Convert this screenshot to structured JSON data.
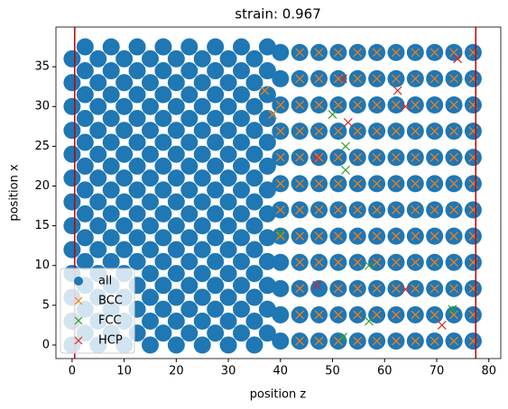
{
  "chart_data": {
    "type": "scatter",
    "title": "strain: 0.967",
    "x_label": "position z",
    "y_label": "position x",
    "xlim": [
      -3.1,
      82.3
    ],
    "ylim": [
      -1.7,
      40.0
    ],
    "xticks": [
      0,
      10,
      20,
      30,
      40,
      50,
      60,
      70,
      80
    ],
    "yticks": [
      0,
      5,
      10,
      15,
      20,
      25,
      30,
      35
    ],
    "vlines": [
      0.5,
      77.5
    ],
    "vline_color": "#c00000",
    "legend": "lower left",
    "series": [
      {
        "name": "all",
        "color": "#1f77b4",
        "marker": "o",
        "x": [
          0,
          0,
          0,
          0,
          0,
          0,
          0,
          0,
          0,
          0,
          0,
          0,
          0,
          2.5,
          2.5,
          2.5,
          2.5,
          2.5,
          2.5,
          2.5,
          2.5,
          2.5,
          2.5,
          2.5,
          2.5,
          2.5,
          5,
          5,
          5,
          5,
          5,
          5,
          5,
          5,
          5,
          5,
          5,
          5,
          5,
          7.5,
          7.5,
          7.5,
          7.5,
          7.5,
          7.5,
          7.5,
          7.5,
          7.5,
          7.5,
          7.5,
          7.5,
          7.5,
          10,
          10,
          10,
          10,
          10,
          10,
          10,
          10,
          10,
          10,
          10,
          10,
          10,
          12.5,
          12.5,
          12.5,
          12.5,
          12.5,
          12.5,
          12.5,
          12.5,
          12.5,
          12.5,
          12.5,
          12.5,
          12.5,
          15,
          15,
          15,
          15,
          15,
          15,
          15,
          15,
          15,
          15,
          15,
          15,
          15,
          17.5,
          17.5,
          17.5,
          17.5,
          17.5,
          17.5,
          17.5,
          17.5,
          17.5,
          17.5,
          17.5,
          17.5,
          17.5,
          20,
          20,
          20,
          20,
          20,
          20,
          20,
          20,
          20,
          20,
          20,
          20,
          20,
          22.5,
          22.5,
          22.5,
          22.5,
          22.5,
          22.5,
          22.5,
          22.5,
          22.5,
          22.5,
          22.5,
          22.5,
          22.5,
          25,
          25,
          25,
          25,
          25,
          25,
          25,
          25,
          25,
          25,
          25,
          25,
          25,
          27.5,
          27.5,
          27.5,
          27.5,
          27.5,
          27.5,
          27.5,
          27.5,
          27.5,
          27.5,
          27.5,
          27.5,
          27.5,
          30,
          30,
          30,
          30,
          30,
          30,
          30,
          30,
          30,
          30,
          30,
          30,
          30,
          32.5,
          32.5,
          32.5,
          32.5,
          32.5,
          32.5,
          32.5,
          32.5,
          32.5,
          32.5,
          32.5,
          32.5,
          32.5,
          35,
          35,
          35,
          35,
          35,
          35,
          35,
          35,
          35,
          35,
          35,
          35,
          35,
          37.5,
          37.5,
          37.5,
          37.5,
          37.5,
          37.5,
          37.5,
          37.5,
          37.5,
          37.5,
          37.5,
          37.5,
          37.5,
          40,
          40,
          40,
          40,
          40,
          40,
          40,
          40,
          40,
          40,
          40,
          40,
          43.7,
          43.7,
          43.7,
          43.7,
          43.7,
          43.7,
          43.7,
          43.7,
          43.7,
          43.7,
          43.7,
          43.7,
          47.4,
          47.4,
          47.4,
          47.4,
          47.4,
          47.4,
          47.4,
          47.4,
          47.4,
          47.4,
          47.4,
          47.4,
          51.1,
          51.1,
          51.1,
          51.1,
          51.1,
          51.1,
          51.1,
          51.1,
          51.1,
          51.1,
          51.1,
          51.1,
          54.8,
          54.8,
          54.8,
          54.8,
          54.8,
          54.8,
          54.8,
          54.8,
          54.8,
          54.8,
          54.8,
          54.8,
          58.5,
          58.5,
          58.5,
          58.5,
          58.5,
          58.5,
          58.5,
          58.5,
          58.5,
          58.5,
          58.5,
          58.5,
          62.2,
          62.2,
          62.2,
          62.2,
          62.2,
          62.2,
          62.2,
          62.2,
          62.2,
          62.2,
          62.2,
          62.2,
          65.9,
          65.9,
          65.9,
          65.9,
          65.9,
          65.9,
          65.9,
          65.9,
          65.9,
          65.9,
          65.9,
          65.9,
          69.6,
          69.6,
          69.6,
          69.6,
          69.6,
          69.6,
          69.6,
          69.6,
          69.6,
          69.6,
          69.6,
          69.6,
          73.3,
          73.3,
          73.3,
          73.3,
          73.3,
          73.3,
          73.3,
          73.3,
          73.3,
          73.3,
          73.3,
          73.3,
          77,
          77,
          77,
          77,
          77,
          77,
          77,
          77,
          77,
          77,
          77,
          77
        ],
        "values": [
          0,
          3,
          6,
          9,
          12,
          15,
          18,
          21,
          24,
          27,
          30,
          33,
          36,
          1.5,
          4.5,
          7.5,
          10.5,
          13.5,
          16.5,
          19.5,
          22.5,
          25.5,
          28.5,
          31.5,
          34.5,
          37.5,
          0,
          3,
          6,
          9,
          12,
          15,
          18,
          21,
          24,
          27,
          30,
          33,
          36,
          1.5,
          4.5,
          7.5,
          10.5,
          13.5,
          16.5,
          19.5,
          22.5,
          25.5,
          28.5,
          31.5,
          34.5,
          37.5,
          0,
          3,
          6,
          9,
          12,
          15,
          18,
          21,
          24,
          27,
          30,
          33,
          36,
          1.5,
          4.5,
          7.5,
          10.5,
          13.5,
          16.5,
          19.5,
          22.5,
          25.5,
          28.5,
          31.5,
          34.5,
          37.5,
          0,
          3,
          6,
          9,
          12,
          15,
          18,
          21,
          24,
          27,
          30,
          33,
          36,
          1.5,
          4.5,
          7.5,
          10.5,
          13.5,
          16.5,
          19.5,
          22.5,
          25.5,
          28.5,
          31.5,
          34.5,
          37.5,
          0,
          3,
          6,
          9,
          12,
          15,
          18,
          21,
          24,
          27,
          30,
          33,
          36,
          1.5,
          4.5,
          7.5,
          10.5,
          13.5,
          16.5,
          19.5,
          22.5,
          25.5,
          28.5,
          31.5,
          34.5,
          37.5,
          0,
          3,
          6,
          9,
          12,
          15,
          18,
          21,
          24,
          27,
          30,
          33,
          36,
          1.5,
          4.5,
          7.5,
          10.5,
          13.5,
          16.5,
          19.5,
          22.5,
          25.5,
          28.5,
          31.5,
          34.5,
          37.5,
          0,
          3,
          6,
          9,
          12,
          15,
          18,
          21,
          24,
          27,
          30,
          33,
          36,
          1.5,
          4.5,
          7.5,
          10.5,
          13.5,
          16.5,
          19.5,
          22.5,
          25.5,
          28.5,
          31.5,
          34.5,
          37.5,
          0,
          3,
          6,
          9,
          12,
          15,
          18,
          21,
          24,
          27,
          30,
          33,
          36,
          1.5,
          4.5,
          7.5,
          10.5,
          13.5,
          16.5,
          19.5,
          22.5,
          25.5,
          28.5,
          31.5,
          34.5,
          37.5,
          0.5,
          3.8,
          7.1,
          10.4,
          13.7,
          17,
          20.3,
          23.6,
          26.9,
          30.2,
          33.5,
          36.8,
          0.5,
          3.8,
          7.1,
          10.4,
          13.7,
          17,
          20.3,
          23.6,
          26.9,
          30.2,
          33.5,
          36.8,
          0.5,
          3.8,
          7.1,
          10.4,
          13.7,
          17,
          20.3,
          23.6,
          26.9,
          30.2,
          33.5,
          36.8,
          0.5,
          3.8,
          7.1,
          10.4,
          13.7,
          17,
          20.3,
          23.6,
          26.9,
          30.2,
          33.5,
          36.8,
          0.5,
          3.8,
          7.1,
          10.4,
          13.7,
          17,
          20.3,
          23.6,
          26.9,
          30.2,
          33.5,
          36.8,
          0.5,
          3.8,
          7.1,
          10.4,
          13.7,
          17,
          20.3,
          23.6,
          26.9,
          30.2,
          33.5,
          36.8,
          0.5,
          3.8,
          7.1,
          10.4,
          13.7,
          17,
          20.3,
          23.6,
          26.9,
          30.2,
          33.5,
          36.8,
          0.5,
          3.8,
          7.1,
          10.4,
          13.7,
          17,
          20.3,
          23.6,
          26.9,
          30.2,
          33.5,
          36.8,
          0.5,
          3.8,
          7.1,
          10.4,
          13.7,
          17,
          20.3,
          23.6,
          26.9,
          30.2,
          33.5,
          36.8,
          0.5,
          3.8,
          7.1,
          10.4,
          13.7,
          17,
          20.3,
          23.6,
          26.9,
          30.2,
          33.5,
          36.8,
          0.5,
          3.8,
          7.1,
          10.4,
          13.7,
          17,
          20.3,
          23.6,
          26.9,
          30.2,
          33.5,
          36.8
        ]
      },
      {
        "name": "BCC",
        "color": "#ff7f0e",
        "marker": "x",
        "x": [
          37,
          38.5,
          40,
          40,
          40,
          40,
          40,
          40,
          43.7,
          43.7,
          43.7,
          43.7,
          43.7,
          43.7,
          43.7,
          43.7,
          43.7,
          43.7,
          43.7,
          43.7,
          47.4,
          47.4,
          47.4,
          47.4,
          47.4,
          47.4,
          47.4,
          47.4,
          47.4,
          47.4,
          47.4,
          51.1,
          51.1,
          51.1,
          51.1,
          51.1,
          51.1,
          51.1,
          51.1,
          51.1,
          51.1,
          51.1,
          51.1,
          54.8,
          54.8,
          54.8,
          54.8,
          54.8,
          54.8,
          54.8,
          54.8,
          54.8,
          54.8,
          54.8,
          54.8,
          58.5,
          58.5,
          58.5,
          58.5,
          58.5,
          58.5,
          58.5,
          58.5,
          58.5,
          58.5,
          58.5,
          58.5,
          62.2,
          62.2,
          62.2,
          62.2,
          62.2,
          62.2,
          62.2,
          62.2,
          62.2,
          62.2,
          62.2,
          62.2,
          65.9,
          65.9,
          65.9,
          65.9,
          65.9,
          65.9,
          65.9,
          65.9,
          65.9,
          65.9,
          65.9,
          65.9,
          69.6,
          69.6,
          69.6,
          69.6,
          69.6,
          69.6,
          69.6,
          69.6,
          69.6,
          69.6,
          69.6,
          69.6,
          73.3,
          73.3,
          73.3,
          73.3,
          73.3,
          73.3,
          73.3,
          73.3,
          73.3,
          73.3,
          73.3,
          73.3,
          77,
          77,
          77,
          77,
          77,
          77,
          77,
          77,
          77,
          77,
          77,
          77
        ],
        "values": [
          32,
          29,
          13.7,
          17,
          20.3,
          23.6,
          26.9,
          30.2,
          0.5,
          3.8,
          7.1,
          10.4,
          13.7,
          17,
          20.3,
          23.6,
          26.9,
          30.2,
          33.5,
          36.8,
          0.5,
          3.8,
          10.4,
          13.7,
          17,
          20.3,
          23.6,
          26.9,
          30.2,
          33.5,
          36.8,
          0.5,
          3.8,
          7.1,
          10.4,
          13.7,
          17,
          20.3,
          23.6,
          26.9,
          30.2,
          33.5,
          36.8,
          0.5,
          3.8,
          7.1,
          10.4,
          13.7,
          17,
          20.3,
          23.6,
          26.9,
          30.2,
          33.5,
          36.8,
          0.5,
          3.8,
          7.1,
          10.4,
          13.7,
          17,
          20.3,
          23.6,
          26.9,
          30.2,
          33.5,
          36.8,
          0.5,
          3.8,
          7.1,
          10.4,
          13.7,
          17,
          20.3,
          23.6,
          26.9,
          30.2,
          33.5,
          36.8,
          0.5,
          3.8,
          7.1,
          10.4,
          13.7,
          17,
          20.3,
          23.6,
          26.9,
          30.2,
          33.5,
          36.8,
          0.5,
          3.8,
          7.1,
          10.4,
          13.7,
          17,
          20.3,
          23.6,
          26.9,
          30.2,
          33.5,
          36.8,
          0.5,
          3.8,
          7.1,
          10.4,
          13.7,
          17,
          20.3,
          23.6,
          26.9,
          30.2,
          33.5,
          36.8,
          0.5,
          3.8,
          7.1,
          10.4,
          13.7,
          17,
          20.3,
          23.6,
          26.9,
          30.2,
          33.5,
          36.8
        ]
      },
      {
        "name": "FCC",
        "color": "#2ca02c",
        "marker": "x",
        "x": [
          52.5,
          52.5,
          40,
          57,
          57,
          52,
          73,
          50
        ],
        "values": [
          25,
          22,
          14,
          10,
          3,
          1,
          4.5,
          29
        ]
      },
      {
        "name": "HCP",
        "color": "#d62728",
        "marker": "x",
        "x": [
          52,
          53,
          62.5,
          64,
          47,
          47,
          64,
          71,
          74
        ],
        "values": [
          33.5,
          28,
          32,
          30,
          23.5,
          7.5,
          7,
          2.5,
          36
        ]
      }
    ]
  }
}
